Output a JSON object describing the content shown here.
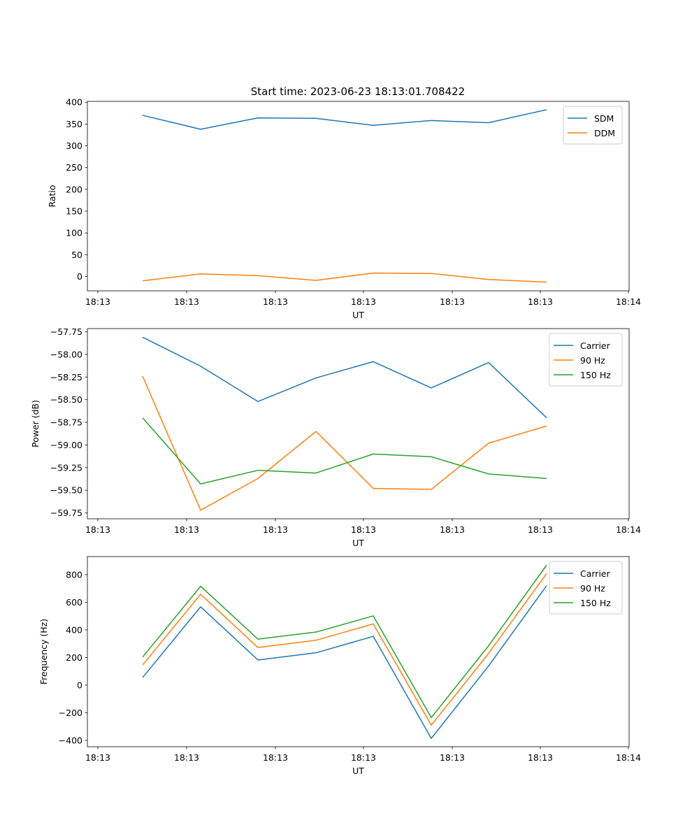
{
  "figure": {
    "title": "Start time: 2023-06-23 18:13:01.708422"
  },
  "chart_data": [
    {
      "type": "line",
      "title": "Start time: 2023-06-23 18:13:01.708422",
      "xlabel": "UT",
      "ylabel": "Ratio",
      "x_tick_labels": [
        "18:13",
        "18:13",
        "18:13",
        "18:13",
        "18:13",
        "18:13",
        "18:14"
      ],
      "y_ticks": [
        0,
        50,
        100,
        150,
        200,
        250,
        300,
        350,
        400
      ],
      "y_tick_labels": [
        "0",
        "50",
        "100",
        "150",
        "200",
        "250",
        "300",
        "350",
        "400"
      ],
      "ylim": [
        -33,
        402
      ],
      "grid": false,
      "legend_position": "upper right",
      "series": [
        {
          "name": "SDM",
          "color": "#1f77b4",
          "values": [
            370,
            338,
            364,
            363,
            347,
            358,
            353,
            383
          ]
        },
        {
          "name": "DDM",
          "color": "#ff7f0e",
          "values": [
            -10,
            6,
            2,
            -9,
            8,
            7,
            -7,
            -13
          ]
        }
      ]
    },
    {
      "type": "line",
      "title": "",
      "xlabel": "UT",
      "ylabel": "Power (dB)",
      "x_tick_labels": [
        "18:13",
        "18:13",
        "18:13",
        "18:13",
        "18:13",
        "18:13",
        "18:14"
      ],
      "y_ticks": [
        -59.75,
        -59.5,
        -59.25,
        -59.0,
        -58.75,
        -58.5,
        -58.25,
        -58.0,
        -57.75
      ],
      "y_tick_labels": [
        "−59.75",
        "−59.50",
        "−59.25",
        "−59.00",
        "−58.75",
        "−58.50",
        "−58.25",
        "−58.00",
        "−57.75"
      ],
      "ylim": [
        -59.815,
        -57.715
      ],
      "grid": false,
      "legend_position": "upper right",
      "series": [
        {
          "name": "Carrier",
          "color": "#1f77b4",
          "values": [
            -57.81,
            -58.13,
            -58.52,
            -58.26,
            -58.08,
            -58.37,
            -58.09,
            -58.7
          ]
        },
        {
          "name": "90 Hz",
          "color": "#ff7f0e",
          "values": [
            -58.24,
            -59.72,
            -59.37,
            -58.85,
            -59.48,
            -59.49,
            -58.98,
            -58.79
          ]
        },
        {
          "name": "150 Hz",
          "color": "#2ca02c",
          "values": [
            -58.7,
            -59.43,
            -59.28,
            -59.31,
            -59.1,
            -59.13,
            -59.32,
            -59.37
          ]
        }
      ]
    },
    {
      "type": "line",
      "title": "",
      "xlabel": "UT",
      "ylabel": "Frequency (Hz)",
      "x_tick_labels": [
        "18:13",
        "18:13",
        "18:13",
        "18:13",
        "18:13",
        "18:13",
        "18:14"
      ],
      "y_ticks": [
        -400,
        -200,
        0,
        200,
        400,
        600,
        800
      ],
      "y_tick_labels": [
        "−400",
        "−200",
        "0",
        "200",
        "400",
        "600",
        "800"
      ],
      "ylim": [
        -446,
        931
      ],
      "grid": false,
      "legend_position": "upper right",
      "series": [
        {
          "name": "Carrier",
          "color": "#1f77b4",
          "values": [
            55,
            567,
            182,
            234,
            353,
            -386,
            139,
            720
          ]
        },
        {
          "name": "90 Hz",
          "color": "#ff7f0e",
          "values": [
            146,
            658,
            272,
            325,
            443,
            -290,
            230,
            808
          ]
        },
        {
          "name": "150 Hz",
          "color": "#2ca02c",
          "values": [
            203,
            716,
            333,
            384,
            501,
            -235,
            285,
            869
          ]
        }
      ]
    }
  ]
}
